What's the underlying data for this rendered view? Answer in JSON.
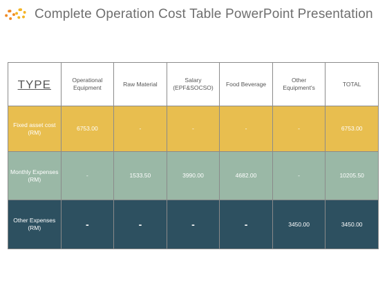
{
  "slide": {
    "title": "Complete Operation Cost Table PowerPoint Presentation"
  },
  "table": {
    "headers": [
      "TYPE",
      "Operational Equipment",
      "Raw Material",
      "Salary (EPF&SOCSO)",
      "Food Beverage",
      "Other Equipment's",
      "TOTAL"
    ],
    "rows": [
      {
        "label": "Fixed asset cost (RM)",
        "cells": [
          "6753.00",
          "-",
          "-",
          "-",
          "-",
          "6753.00"
        ]
      },
      {
        "label": "Monthly Expenses (RM)",
        "cells": [
          "-",
          "1533.50",
          "3990.00",
          "4682.00",
          "-",
          "10205.50"
        ]
      },
      {
        "label": "Other Expenses (RM)",
        "cells": [
          "-",
          "-",
          "-",
          "-",
          "3450.00",
          "3450.00"
        ]
      }
    ]
  },
  "colors": {
    "row1": "#e8be4f",
    "row2": "#9ab8a6",
    "row3": "#2d5060",
    "gear_primary": "#f08a24",
    "gear_secondary": "#f4b425"
  }
}
